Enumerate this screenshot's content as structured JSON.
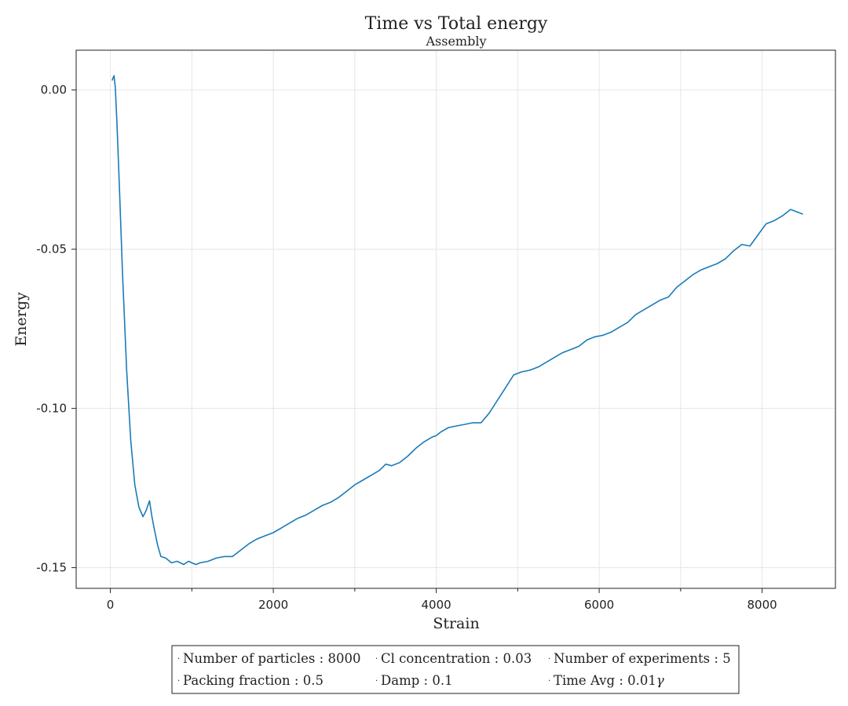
{
  "chart_data": {
    "type": "line",
    "title": "Time vs Total energy",
    "subtitle": "Assembly",
    "xlabel": "Strain",
    "ylabel": "Energy",
    "xlim": [
      -420,
      8900
    ],
    "ylim": [
      -0.1565,
      0.0125
    ],
    "x_ticks": [
      0,
      2000,
      4000,
      6000,
      8000
    ],
    "x_tick_labels": [
      "0",
      "2000",
      "4000",
      "6000",
      "8000"
    ],
    "x_minor_ticks": [
      1000,
      3000,
      5000,
      7000
    ],
    "y_ticks": [
      0.0,
      -0.05,
      -0.1,
      -0.15
    ],
    "y_tick_labels": [
      "0.00",
      "-0.05",
      "-0.10",
      "-0.15"
    ],
    "grid": true,
    "colors": {
      "line": "#1a7bb8"
    },
    "series": [
      {
        "x": [
          20,
          45,
          60,
          80,
          110,
          150,
          200,
          250,
          300,
          350,
          400,
          440,
          480,
          510,
          540,
          580,
          620,
          680,
          750,
          820,
          900,
          960,
          1000,
          1050,
          1100,
          1200,
          1300,
          1400,
          1500,
          1600,
          1700,
          1800,
          1900,
          2000,
          2100,
          2200,
          2300,
          2400,
          2500,
          2600,
          2700,
          2800,
          2900,
          3000,
          3100,
          3200,
          3300,
          3380,
          3450,
          3550,
          3650,
          3750,
          3850,
          3950,
          4000,
          4050,
          4150,
          4250,
          4350,
          4450,
          4550,
          4650,
          4750,
          4850,
          4950,
          5050,
          5150,
          5250,
          5350,
          5450,
          5550,
          5650,
          5750,
          5850,
          5950,
          6050,
          6150,
          6250,
          6350,
          6450,
          6550,
          6650,
          6750,
          6850,
          6950,
          7050,
          7150,
          7250,
          7350,
          7450,
          7550,
          7650,
          7750,
          7850,
          7950,
          8050,
          8150,
          8250,
          8350,
          8400,
          8450,
          8500
        ],
        "y": [
          0.003,
          0.0045,
          0.001,
          -0.01,
          -0.03,
          -0.058,
          -0.088,
          -0.11,
          -0.124,
          -0.131,
          -0.134,
          -0.132,
          -0.129,
          -0.134,
          -0.138,
          -0.143,
          -0.1465,
          -0.147,
          -0.1485,
          -0.148,
          -0.149,
          -0.148,
          -0.1485,
          -0.149,
          -0.1485,
          -0.148,
          -0.147,
          -0.1465,
          -0.1465,
          -0.1445,
          -0.1425,
          -0.141,
          -0.14,
          -0.139,
          -0.1375,
          -0.136,
          -0.1345,
          -0.1335,
          -0.132,
          -0.1305,
          -0.1295,
          -0.128,
          -0.126,
          -0.124,
          -0.1225,
          -0.121,
          -0.1195,
          -0.1175,
          -0.118,
          -0.117,
          -0.115,
          -0.1125,
          -0.1105,
          -0.109,
          -0.1085,
          -0.1075,
          -0.106,
          -0.1055,
          -0.105,
          -0.1045,
          -0.1045,
          -0.1015,
          -0.0975,
          -0.0935,
          -0.0895,
          -0.0885,
          -0.088,
          -0.087,
          -0.0855,
          -0.084,
          -0.0825,
          -0.0815,
          -0.0805,
          -0.0785,
          -0.0775,
          -0.077,
          -0.076,
          -0.0745,
          -0.073,
          -0.0705,
          -0.069,
          -0.0675,
          -0.066,
          -0.065,
          -0.062,
          -0.06,
          -0.058,
          -0.0565,
          -0.0555,
          -0.0545,
          -0.053,
          -0.0505,
          -0.0485,
          -0.049,
          -0.0455,
          -0.042,
          -0.041,
          -0.0395,
          -0.0375,
          -0.038,
          -0.0385,
          -0.039
        ]
      }
    ]
  },
  "legend": {
    "items": [
      {
        "name": "Number of particles",
        "value": "8000"
      },
      {
        "name": "Cl concentration",
        "value": "0.03"
      },
      {
        "name": "Number of experiments",
        "value": "5"
      },
      {
        "name": "Packing fraction",
        "value": "0.5"
      },
      {
        "name": "Damp",
        "value": "0.1"
      },
      {
        "name": "Time Avg",
        "value": "0.01",
        "symbol": "γ"
      }
    ]
  }
}
